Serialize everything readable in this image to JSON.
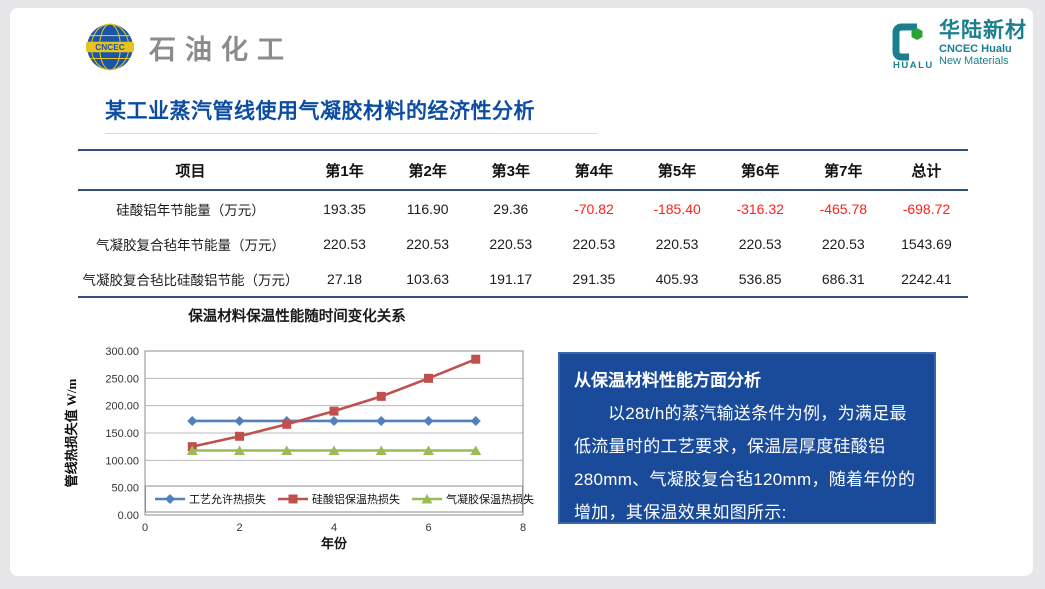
{
  "header": {
    "cncec_logo": {
      "badge_text": "CNCEC",
      "brand_text": "石油化工"
    },
    "hualu_logo": {
      "mark_text": "HUALU",
      "name_cn": "华陆新材",
      "name_en_1": "CNCEC Hualu",
      "name_en_2": "New Materials"
    }
  },
  "title": "某工业蒸汽管线使用气凝胶材料的经济性分析",
  "table": {
    "columns": [
      "项目",
      "第1年",
      "第2年",
      "第3年",
      "第4年",
      "第5年",
      "第6年",
      "第7年",
      "总计"
    ],
    "rows": [
      {
        "label": "硅酸铝年节能量（万元）",
        "values": [
          "193.35",
          "116.90",
          "29.36",
          "-70.82",
          "-185.40",
          "-316.32",
          "-465.78",
          "-698.72"
        ]
      },
      {
        "label": "气凝胶复合毡年节能量（万元）",
        "values": [
          "220.53",
          "220.53",
          "220.53",
          "220.53",
          "220.53",
          "220.53",
          "220.53",
          "1543.69"
        ]
      },
      {
        "label": "气凝胶复合毡比硅酸铝节能（万元）",
        "values": [
          "27.18",
          "103.63",
          "191.17",
          "291.35",
          "405.93",
          "536.85",
          "686.31",
          "2242.41"
        ]
      }
    ]
  },
  "chart_data": {
    "type": "line",
    "title": "保温材料保温性能随时间变化关系",
    "xlabel": "年份",
    "ylabel": "管线热损失值 W/m",
    "x": [
      1,
      2,
      3,
      4,
      5,
      6,
      7
    ],
    "xlim": [
      0,
      8
    ],
    "ylim": [
      0,
      300
    ],
    "x_ticks": [
      0,
      2,
      4,
      6,
      8
    ],
    "y_ticks": [
      300,
      250,
      200,
      150,
      100,
      50,
      0
    ],
    "y_tick_format": "0.00",
    "grid": true,
    "legend_position": "bottom-inside",
    "series": [
      {
        "name": "工艺允许热损失",
        "marker": "diamond",
        "color": "#4F81BD",
        "values": [
          172,
          172,
          172,
          172,
          172,
          172,
          172
        ]
      },
      {
        "name": "硅酸铝保温热损失",
        "marker": "square",
        "color": "#C0504D",
        "values": [
          125,
          144,
          166,
          190,
          217,
          250,
          285
        ]
      },
      {
        "name": "气凝胶保温热损失",
        "marker": "triangle",
        "color": "#9BBB59",
        "values": [
          118,
          118,
          118,
          118,
          118,
          118,
          118
        ]
      }
    ]
  },
  "analysis_box": {
    "heading": "从保温材料性能方面分析",
    "body": "以28t/h的蒸汽输送条件为例，为满足最低流量时的工艺要求，保温层厚度硅酸铝280mm、气凝胶复合毡120mm，随着年份的增加，其保温效果如图所示:"
  },
  "colors": {
    "title_blue": "#0c4da2",
    "table_border": "#31517a",
    "negative_red": "#ff2018",
    "box_bg": "#1a4b9b",
    "box_border": "#3a66ab",
    "cncec_gray": "#8b8b8b",
    "cncec_blue": "#1a56a8",
    "cncec_yellow": "#e8c21f",
    "hualu_teal": "#1b7f8e",
    "hualu_green": "#2aa335"
  }
}
